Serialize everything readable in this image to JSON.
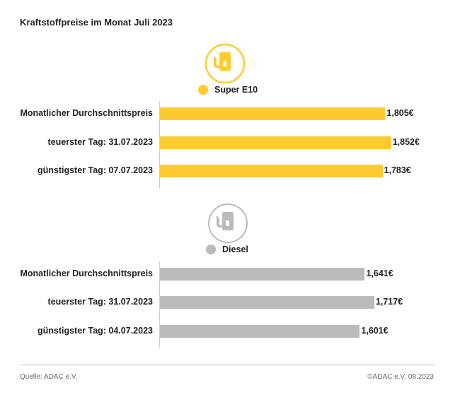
{
  "title": "Kraftstoffpreise im Monat Juli 2023",
  "chart_data": [
    {
      "type": "bar",
      "orientation": "horizontal",
      "legend": "Super E10",
      "color": "#fecb2f",
      "icon": "fuel-pump-icon",
      "categories": [
        "Monatlicher Durchschnittspreis",
        "teuerster Tag: 31.07.2023",
        "günstigster Tag: 07.07.2023"
      ],
      "values": [
        1.805,
        1.852,
        1.783
      ],
      "value_labels": [
        "1,805€",
        "1,852€",
        "1,783€"
      ]
    },
    {
      "type": "bar",
      "orientation": "horizontal",
      "legend": "Diesel",
      "color": "#bbbbbb",
      "icon": "fuel-pump-icon",
      "categories": [
        "Monatlicher Durchschnittspreis",
        "teuerster Tag: 31.07.2023",
        "günstigster Tag: 04.07.2023"
      ],
      "values": [
        1.641,
        1.717,
        1.601
      ],
      "value_labels": [
        "1,641€",
        "1,717€",
        "1,601€"
      ]
    }
  ],
  "footer": {
    "source": "Quelle: ADAC e.V.",
    "copyright": "©ADAC e.V. 08.2023"
  }
}
